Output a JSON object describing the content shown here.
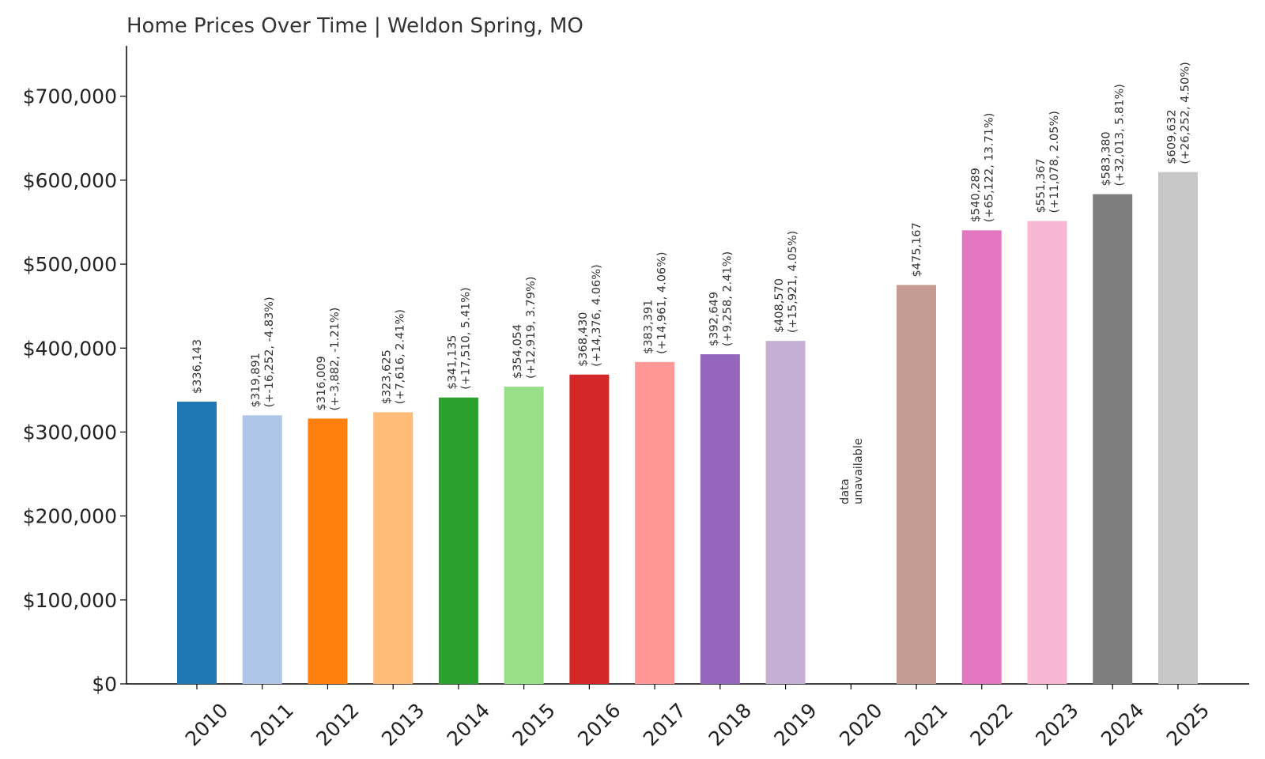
{
  "chart_data": {
    "type": "bar",
    "title": "Home Prices Over Time | Weldon Spring, MO",
    "xlabel": "",
    "ylabel": "",
    "ylim": [
      0,
      760000
    ],
    "yticks": [
      {
        "value": 0,
        "label": "$0"
      },
      {
        "value": 100000,
        "label": "$100,000"
      },
      {
        "value": 200000,
        "label": "$200,000"
      },
      {
        "value": 300000,
        "label": "$300,000"
      },
      {
        "value": 400000,
        "label": "$400,000"
      },
      {
        "value": 500000,
        "label": "$500,000"
      },
      {
        "value": 600000,
        "label": "$600,000"
      },
      {
        "value": 700000,
        "label": "$700,000"
      }
    ],
    "grid": false,
    "legend": "none",
    "categories": [
      "2010",
      "2011",
      "2012",
      "2013",
      "2014",
      "2015",
      "2016",
      "2017",
      "2018",
      "2019",
      "2020",
      "2021",
      "2022",
      "2023",
      "2024",
      "2025"
    ],
    "values": [
      336143,
      319891,
      316009,
      323625,
      341135,
      354054,
      368430,
      383391,
      392649,
      408570,
      null,
      475167,
      540289,
      551367,
      583380,
      609632
    ],
    "colors": [
      "#1f77b4",
      "#aec7e8",
      "#ff7f0e",
      "#ffbb78",
      "#2ca02c",
      "#98df8a",
      "#d62728",
      "#ff9896",
      "#9467bd",
      "#c5b0d5",
      "#8c564b",
      "#c49c94",
      "#e377c2",
      "#f7b6d2",
      "#7f7f7f",
      "#c7c7c7"
    ],
    "data_labels": [
      [
        "$336,143"
      ],
      [
        "$319,891",
        "(+-16,252, -4.83%)"
      ],
      [
        "$316,009",
        "(+-3,882, -1.21%)"
      ],
      [
        "$323,625",
        "(+7,616, 2.41%)"
      ],
      [
        "$341,135",
        "(+17,510, 5.41%)"
      ],
      [
        "$354,054",
        "(+12,919, 3.79%)"
      ],
      [
        "$368,430",
        "(+14,376, 4.06%)"
      ],
      [
        "$383,391",
        "(+14,961, 4.06%)"
      ],
      [
        "$392,649",
        "(+9,258, 2.41%)"
      ],
      [
        "$408,570",
        "(+15,921, 4.05%)"
      ],
      [
        "data",
        "unavailable"
      ],
      [
        "$475,167"
      ],
      [
        "$540,289",
        "(+65,122, 13.71%)"
      ],
      [
        "$551,367",
        "(+11,078, 2.05%)"
      ],
      [
        "$583,380",
        "(+32,013, 5.81%)"
      ],
      [
        "$609,632",
        "(+26,252, 4.50%)"
      ]
    ],
    "missing_label": [
      "data",
      "unavailable"
    ]
  }
}
